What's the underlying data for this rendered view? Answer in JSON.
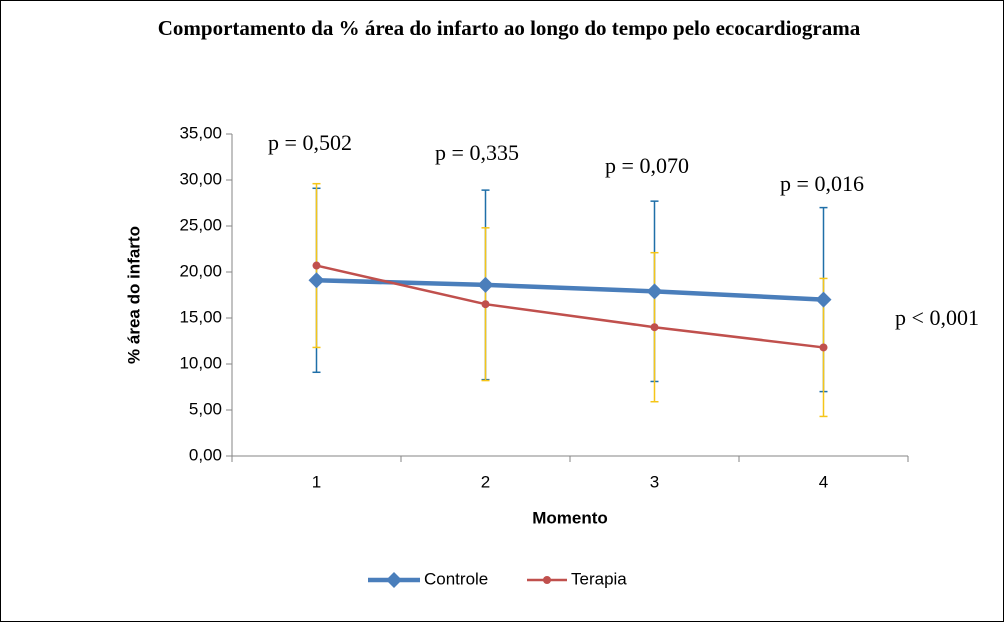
{
  "chart_data": {
    "type": "line",
    "title": "Comportamento da % área do infarto ao longo do tempo pelo ecocardiograma",
    "x_label": "Momento",
    "y_label": "% área do infarto",
    "categories": [
      "1",
      "2",
      "3",
      "4"
    ],
    "series": [
      {
        "name": "Controle",
        "color": "#4a7ebb",
        "marker": "diamond",
        "error_color": "#1f6fa8",
        "values": [
          19.1,
          18.6,
          17.9,
          17.0
        ],
        "errors": [
          10.0,
          10.3,
          9.8,
          10.0
        ]
      },
      {
        "name": "Terapia",
        "color": "#c0504d",
        "marker": "circle",
        "error_color": "#f5c518",
        "values": [
          20.7,
          16.5,
          14.0,
          11.8
        ],
        "errors": [
          8.9,
          8.3,
          8.1,
          7.5
        ]
      }
    ],
    "ylim": [
      0,
      35
    ],
    "yticks": [
      {
        "value": 0,
        "label": "0,00"
      },
      {
        "value": 5,
        "label": "5,00"
      },
      {
        "value": 10,
        "label": "10,00"
      },
      {
        "value": 15,
        "label": "15,00"
      },
      {
        "value": 20,
        "label": "20,00"
      },
      {
        "value": 25,
        "label": "25,00"
      },
      {
        "value": 30,
        "label": "30,00"
      },
      {
        "value": 35,
        "label": "35,00"
      }
    ],
    "annotations": [
      "p = 0,502",
      "p = 0,335",
      "p = 0,070",
      "p = 0,016",
      "p < 0,001"
    ],
    "legend": "bottom"
  }
}
